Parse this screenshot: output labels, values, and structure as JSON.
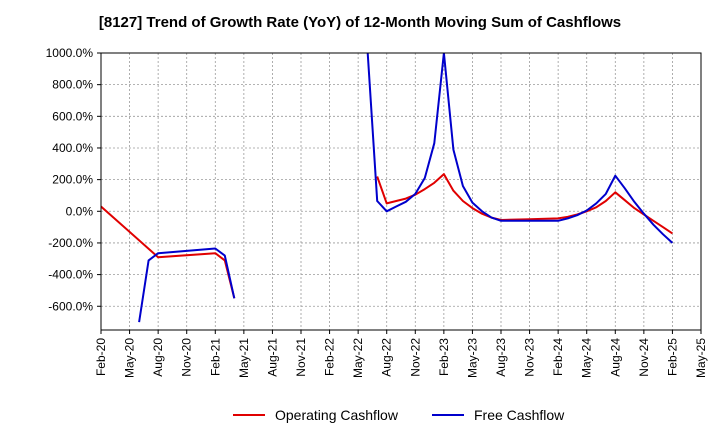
{
  "chart_data": {
    "type": "line",
    "title": "[8127]  Trend of Growth Rate (YoY) of 12-Month Moving Sum of Cashflows",
    "xlabel": "",
    "ylabel": "",
    "ylim": [
      -750,
      1000
    ],
    "yticks": [
      1000,
      800,
      600,
      400,
      200,
      0,
      -200,
      -400,
      -600
    ],
    "ytick_labels": [
      "1000.0%",
      "800.0%",
      "600.0%",
      "400.0%",
      "200.0%",
      "0.0%",
      "-200.0%",
      "-400.0%",
      "-600.0%"
    ],
    "x_range": [
      "2020-02",
      "2025-05"
    ],
    "xtick_labels": [
      "Feb-20",
      "May-20",
      "Aug-20",
      "Nov-20",
      "Feb-21",
      "May-21",
      "Aug-21",
      "Nov-21",
      "Feb-22",
      "May-22",
      "Aug-22",
      "Nov-22",
      "Feb-23",
      "May-23",
      "Aug-23",
      "Nov-23",
      "Feb-24",
      "May-24",
      "Aug-24",
      "Nov-24",
      "Feb-25",
      "May-25"
    ],
    "grid": true,
    "legend_position": "bottom",
    "series": [
      {
        "name": "Operating Cashflow",
        "color": "#e00000",
        "points": [
          [
            "2020-02",
            30
          ],
          [
            "2020-08",
            -290
          ],
          [
            "2021-02",
            -265
          ],
          [
            "2021-03",
            -310
          ],
          [
            "2021-04",
            -550
          ],
          null,
          [
            "2022-07",
            220
          ],
          [
            "2022-08",
            50
          ],
          [
            "2022-09",
            65
          ],
          [
            "2022-10",
            80
          ],
          [
            "2022-11",
            105
          ],
          [
            "2022-12",
            140
          ],
          [
            "2023-01",
            180
          ],
          [
            "2023-02",
            235
          ],
          [
            "2023-03",
            130
          ],
          [
            "2023-04",
            65
          ],
          [
            "2023-05",
            20
          ],
          [
            "2023-06",
            -15
          ],
          [
            "2023-07",
            -40
          ],
          [
            "2023-08",
            -55
          ],
          [
            "2023-11",
            -50
          ],
          [
            "2024-02",
            -45
          ],
          [
            "2024-03",
            -35
          ],
          [
            "2024-04",
            -20
          ],
          [
            "2024-05",
            0
          ],
          [
            "2024-06",
            25
          ],
          [
            "2024-07",
            65
          ],
          [
            "2024-08",
            120
          ],
          [
            "2024-09",
            70
          ],
          [
            "2024-10",
            20
          ],
          [
            "2024-11",
            -20
          ],
          [
            "2024-12",
            -60
          ],
          [
            "2025-01",
            -100
          ],
          [
            "2025-02",
            -140
          ]
        ]
      },
      {
        "name": "Free Cashflow",
        "color": "#0000cc",
        "points": [
          [
            "2020-06",
            -700
          ],
          [
            "2020-07",
            -310
          ],
          [
            "2020-08",
            -265
          ],
          [
            "2021-02",
            -235
          ],
          [
            "2021-03",
            -280
          ],
          [
            "2021-04",
            -550
          ],
          null,
          [
            "2022-06",
            1000
          ],
          [
            "2022-07",
            65
          ],
          [
            "2022-08",
            0
          ],
          [
            "2022-09",
            30
          ],
          [
            "2022-10",
            60
          ],
          [
            "2022-11",
            110
          ],
          [
            "2022-12",
            210
          ],
          [
            "2023-01",
            430
          ],
          [
            "2023-02",
            1000
          ],
          [
            "2023-03",
            390
          ],
          [
            "2023-04",
            160
          ],
          [
            "2023-05",
            55
          ],
          [
            "2023-06",
            0
          ],
          [
            "2023-07",
            -40
          ],
          [
            "2023-08",
            -60
          ],
          [
            "2023-11",
            -60
          ],
          [
            "2024-02",
            -60
          ],
          [
            "2024-03",
            -45
          ],
          [
            "2024-04",
            -25
          ],
          [
            "2024-05",
            5
          ],
          [
            "2024-06",
            50
          ],
          [
            "2024-07",
            110
          ],
          [
            "2024-08",
            225
          ],
          [
            "2024-09",
            145
          ],
          [
            "2024-10",
            60
          ],
          [
            "2024-11",
            -15
          ],
          [
            "2024-12",
            -85
          ],
          [
            "2025-01",
            -145
          ],
          [
            "2025-02",
            -200
          ]
        ]
      }
    ]
  }
}
